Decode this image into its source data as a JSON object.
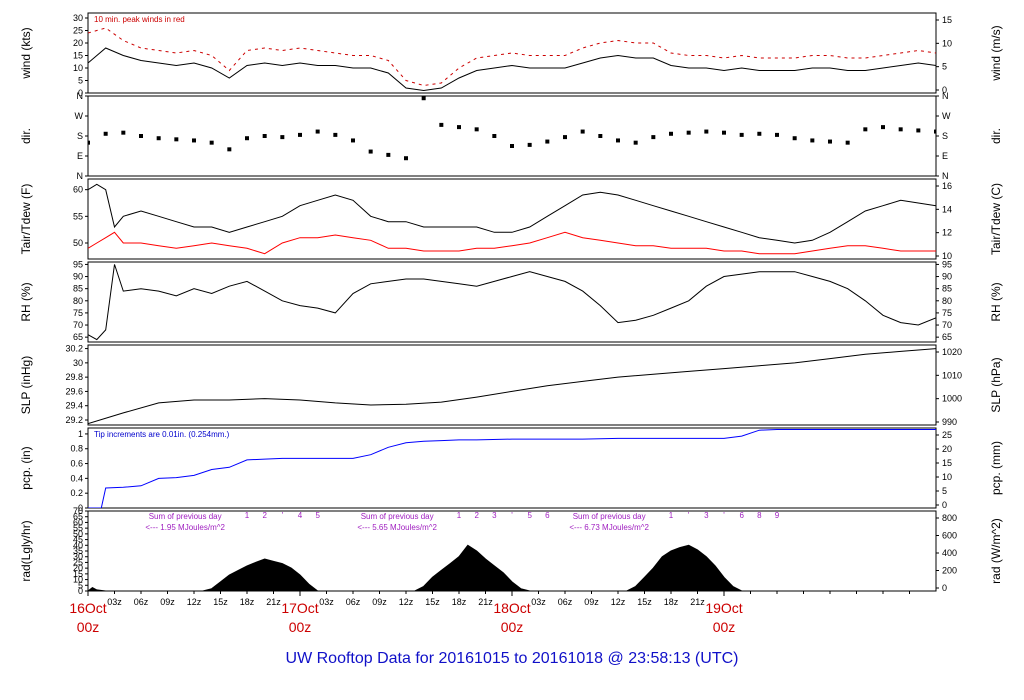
{
  "chart_data": [
    {
      "type": "line",
      "panel": "wind",
      "ylabel": "wind (kts)",
      "ylabel_right": "wind (m/s)",
      "ylim": [
        0,
        32
      ],
      "yticks": [
        0,
        5,
        10,
        15,
        20,
        25,
        30
      ],
      "yticks_right": [
        0,
        5,
        10,
        15
      ],
      "annotation": "10 min. peak winds in red",
      "colors": {
        "line": "#000000",
        "peak": "#cc0000"
      },
      "series": [
        {
          "name": "wind",
          "x": [
            0,
            2,
            4,
            6,
            8,
            10,
            12,
            14,
            16,
            18,
            20,
            22,
            24,
            26,
            28,
            30,
            32,
            34,
            36,
            38,
            40,
            42,
            44,
            46,
            48,
            50,
            52,
            54,
            56,
            58,
            60,
            62,
            64,
            66,
            68,
            70,
            72,
            74,
            76,
            78,
            80,
            82,
            84,
            86,
            88,
            90,
            92,
            94,
            96
          ],
          "values": [
            12,
            18,
            15,
            13,
            12,
            11,
            12,
            10,
            6,
            11,
            12,
            11,
            12,
            11,
            11,
            10,
            10,
            8,
            2,
            1,
            2,
            6,
            9,
            10,
            11,
            10,
            10,
            10,
            12,
            14,
            15,
            14,
            14,
            11,
            10,
            10,
            9,
            10,
            9,
            9,
            9,
            10,
            10,
            9,
            9,
            10,
            11,
            12,
            11
          ]
        },
        {
          "name": "peak",
          "x": [
            0,
            2,
            4,
            6,
            8,
            10,
            12,
            14,
            16,
            18,
            20,
            22,
            24,
            26,
            28,
            30,
            32,
            34,
            36,
            38,
            40,
            42,
            44,
            46,
            48,
            50,
            52,
            54,
            56,
            58,
            60,
            62,
            64,
            66,
            68,
            70,
            72,
            74,
            76,
            78,
            80,
            82,
            84,
            86,
            88,
            90,
            92,
            94,
            96
          ],
          "values": [
            24,
            26,
            21,
            18,
            17,
            16,
            17,
            15,
            9,
            17,
            18,
            17,
            18,
            17,
            16,
            15,
            15,
            13,
            5,
            3,
            4,
            10,
            14,
            15,
            16,
            15,
            15,
            15,
            18,
            20,
            21,
            20,
            20,
            16,
            15,
            15,
            14,
            15,
            14,
            14,
            14,
            15,
            15,
            14,
            14,
            15,
            16,
            17,
            16
          ]
        }
      ]
    },
    {
      "type": "scatter",
      "panel": "dir",
      "ylabel": "dir.",
      "ylabel_right": "dir.",
      "ylim": [
        0,
        360
      ],
      "yticks_labels": [
        "N",
        "E",
        "S",
        "W",
        "N"
      ],
      "yticks": [
        0,
        90,
        180,
        270,
        360
      ],
      "series": [
        {
          "name": "dir",
          "x": [
            0,
            2,
            4,
            6,
            8,
            10,
            12,
            14,
            16,
            18,
            20,
            22,
            24,
            26,
            28,
            30,
            32,
            34,
            36,
            38,
            40,
            42,
            44,
            46,
            48,
            50,
            52,
            54,
            56,
            58,
            60,
            62,
            64,
            66,
            68,
            70,
            72,
            74,
            76,
            78,
            80,
            82,
            84,
            86,
            88,
            90,
            92,
            94,
            96
          ],
          "values": [
            150,
            190,
            195,
            180,
            170,
            165,
            160,
            150,
            120,
            170,
            180,
            175,
            185,
            200,
            185,
            160,
            110,
            95,
            80,
            350,
            230,
            220,
            210,
            180,
            135,
            140,
            155,
            175,
            200,
            180,
            160,
            150,
            175,
            190,
            195,
            200,
            195,
            185,
            190,
            185,
            170,
            160,
            155,
            150,
            210,
            220,
            210,
            205,
            200
          ]
        }
      ]
    },
    {
      "type": "line",
      "panel": "temp",
      "ylabel": "Tair/Tdew (F)",
      "ylabel_right": "Tair/Tdew (C)",
      "ylim": [
        47,
        62
      ],
      "yticks": [
        50,
        55,
        60
      ],
      "yticks_right": [
        10,
        12,
        14,
        16
      ],
      "colors": {
        "tair": "#000000",
        "tdew": "#ff0000"
      },
      "series": [
        {
          "name": "Tair",
          "x": [
            0,
            1,
            2,
            3,
            4,
            6,
            8,
            10,
            12,
            14,
            16,
            18,
            20,
            22,
            24,
            26,
            28,
            30,
            32,
            34,
            36,
            38,
            40,
            42,
            44,
            46,
            48,
            50,
            52,
            54,
            56,
            58,
            60,
            62,
            64,
            66,
            68,
            70,
            72,
            74,
            76,
            78,
            80,
            82,
            84,
            86,
            88,
            90,
            92,
            94,
            96
          ],
          "values": [
            60,
            61,
            60,
            53,
            55,
            56,
            55,
            54,
            53,
            53,
            52,
            53,
            54,
            55,
            57,
            58,
            59,
            58,
            55,
            54,
            54,
            53,
            53,
            53,
            53,
            52,
            52,
            53,
            55,
            57,
            59,
            59.5,
            59,
            58,
            57,
            56,
            55,
            54,
            53,
            52,
            51,
            50.5,
            50,
            50.5,
            52,
            54,
            56,
            57,
            58,
            57.5,
            57
          ]
        },
        {
          "name": "Tdew",
          "x": [
            0,
            1,
            2,
            3,
            4,
            6,
            8,
            10,
            12,
            14,
            16,
            18,
            20,
            22,
            24,
            26,
            28,
            30,
            32,
            34,
            36,
            38,
            40,
            42,
            44,
            46,
            48,
            50,
            52,
            54,
            56,
            58,
            60,
            62,
            64,
            66,
            68,
            70,
            72,
            74,
            76,
            78,
            80,
            82,
            84,
            86,
            88,
            90,
            92,
            94,
            96
          ],
          "values": [
            49,
            50,
            51,
            52,
            50,
            50,
            49.5,
            49,
            49.5,
            50,
            49.5,
            49,
            48,
            50,
            51,
            51,
            51.5,
            51,
            50.5,
            49,
            49,
            48.5,
            48.5,
            48.5,
            49,
            49,
            49.5,
            50,
            51,
            52,
            51,
            50.5,
            50,
            49.5,
            49.5,
            49,
            49,
            49,
            48.5,
            48.5,
            48,
            48,
            48,
            48.5,
            49,
            49.5,
            49.5,
            49,
            48.5,
            48.5,
            48.5
          ]
        }
      ]
    },
    {
      "type": "line",
      "panel": "rh",
      "ylabel": "RH (%)",
      "ylabel_right": "RH (%)",
      "ylim": [
        63,
        96
      ],
      "yticks": [
        65,
        70,
        75,
        80,
        85,
        90,
        95
      ],
      "series": [
        {
          "name": "RH",
          "x": [
            0,
            1,
            2,
            3,
            4,
            6,
            8,
            10,
            12,
            14,
            16,
            18,
            20,
            22,
            24,
            26,
            28,
            30,
            32,
            34,
            36,
            38,
            40,
            42,
            44,
            46,
            48,
            50,
            52,
            54,
            56,
            58,
            60,
            62,
            64,
            66,
            68,
            70,
            72,
            74,
            76,
            78,
            80,
            82,
            84,
            86,
            88,
            90,
            92,
            94,
            96
          ],
          "values": [
            66,
            64,
            68,
            95,
            84,
            85,
            84,
            82,
            85,
            83,
            86,
            88,
            84,
            80,
            78,
            77,
            75,
            83,
            87,
            88,
            89,
            89,
            88,
            87,
            86,
            88,
            90,
            92,
            90,
            88,
            84,
            78,
            71,
            72,
            74,
            77,
            80,
            86,
            90,
            91,
            92,
            92,
            92,
            90,
            88,
            85,
            80,
            74,
            71,
            70,
            73
          ]
        }
      ]
    },
    {
      "type": "line",
      "panel": "slp",
      "ylabel": "SLP (inHg)",
      "ylabel_right": "SLP (hPa)",
      "ylim": [
        29.13,
        30.25
      ],
      "yticks": [
        29.2,
        29.4,
        29.6,
        29.8,
        30.0,
        30.2
      ],
      "yticks_right": [
        990,
        1000,
        1010,
        1020
      ],
      "series": [
        {
          "name": "SLP",
          "x": [
            0,
            4,
            8,
            12,
            16,
            20,
            24,
            28,
            32,
            36,
            40,
            44,
            48,
            52,
            56,
            60,
            64,
            68,
            72,
            76,
            80,
            84,
            88,
            92,
            96
          ],
          "values": [
            29.15,
            29.3,
            29.44,
            29.48,
            29.48,
            29.5,
            29.48,
            29.44,
            29.41,
            29.42,
            29.45,
            29.52,
            29.6,
            29.68,
            29.74,
            29.8,
            29.84,
            29.88,
            29.92,
            29.96,
            30.0,
            30.06,
            30.12,
            30.16,
            30.2
          ]
        }
      ]
    },
    {
      "type": "line",
      "panel": "pcp",
      "ylabel": "pcp. (in)",
      "ylabel_right": "pcp. (mm)",
      "ylim": [
        0,
        1.08
      ],
      "yticks": [
        0.0,
        0.2,
        0.4,
        0.6,
        0.8,
        1.0
      ],
      "yticks_right": [
        0,
        5,
        10,
        15,
        20,
        25
      ],
      "annotation": "Tip increments are 0.01in. (0.254mm.)",
      "colors": {
        "line": "#0000ff"
      },
      "series": [
        {
          "name": "pcp",
          "x": [
            0,
            1.5,
            2,
            4,
            6,
            8,
            10,
            12,
            14,
            16,
            18,
            20,
            22,
            24,
            26,
            30,
            32,
            34,
            36,
            38,
            40,
            42,
            44,
            48,
            52,
            56,
            60,
            64,
            68,
            70,
            72,
            74,
            76,
            78,
            80,
            84,
            88,
            92,
            96
          ],
          "values": [
            0,
            0,
            0.27,
            0.28,
            0.3,
            0.4,
            0.41,
            0.44,
            0.52,
            0.55,
            0.65,
            0.66,
            0.67,
            0.67,
            0.67,
            0.67,
            0.72,
            0.82,
            0.88,
            0.9,
            0.91,
            0.92,
            0.92,
            0.93,
            0.93,
            0.93,
            0.94,
            0.94,
            0.94,
            0.94,
            0.94,
            0.97,
            1.05,
            1.06,
            1.06,
            1.06,
            1.06,
            1.06,
            1.06
          ]
        }
      ]
    },
    {
      "type": "area",
      "panel": "rad",
      "ylabel": "rad(Lgly/hr)",
      "ylabel_right": "rad (W/m^2)",
      "ylim": [
        0,
        70
      ],
      "yticks": [
        0,
        5,
        10,
        15,
        20,
        25,
        30,
        35,
        40,
        45,
        50,
        55,
        60,
        65,
        70
      ],
      "yticks_right": [
        0,
        200,
        400,
        600,
        800
      ],
      "series": [
        {
          "name": "radiation",
          "x": [
            0,
            0.5,
            1,
            2,
            13,
            14,
            15,
            16,
            17,
            18,
            19,
            20,
            21,
            22,
            23,
            24,
            25,
            26,
            37,
            38,
            39,
            40,
            41,
            42,
            43,
            44,
            45,
            46,
            47,
            48,
            49,
            50,
            61,
            62,
            63,
            64,
            65,
            66,
            67,
            68,
            69,
            70,
            71,
            72,
            73,
            74,
            96
          ],
          "values": [
            0,
            3,
            1,
            0,
            0,
            2,
            8,
            14,
            18,
            22,
            25,
            28,
            26,
            24,
            20,
            14,
            6,
            0,
            0,
            4,
            12,
            18,
            24,
            30,
            40,
            35,
            28,
            22,
            16,
            8,
            2,
            0,
            0,
            4,
            12,
            20,
            30,
            35,
            38,
            40,
            36,
            30,
            22,
            12,
            4,
            0,
            0
          ]
        }
      ],
      "day_notes": [
        {
          "text": "Sum of previous day",
          "sub": "<--- 1.95 MJoules/m^2"
        },
        {
          "text": "Sum of previous day",
          "sub": "<--- 5.65 MJoules/m^2"
        },
        {
          "text": "Sum of previous day",
          "sub": "<--- 6.73 MJoules/m^2"
        }
      ],
      "hour_markers": [
        "1",
        "2",
        "'",
        "4",
        "5",
        "1",
        "2",
        "3",
        "'",
        "5",
        "6",
        "1",
        "'",
        "3",
        "'",
        "6",
        "8",
        "9"
      ]
    }
  ],
  "x_axis": {
    "range_hours": [
      0,
      96
    ],
    "tick_labels": [
      "03z",
      "06z",
      "09z",
      "12z",
      "15z",
      "18z",
      "21z",
      "03z",
      "06z",
      "09z",
      "12z",
      "15z",
      "18z",
      "21z",
      "03z",
      "06z",
      "09z",
      "12z",
      "15z",
      "18z",
      "21z"
    ],
    "day_labels": [
      {
        "date": "16Oct",
        "time": "00z"
      },
      {
        "date": "17Oct",
        "time": "00z"
      },
      {
        "date": "18Oct",
        "time": "00z"
      },
      {
        "date": "19Oct",
        "time": "00z"
      }
    ]
  },
  "footer": {
    "title": "UW Rooftop Data for 20161015  to  20161018 @ 23:58:13  (UTC)"
  }
}
